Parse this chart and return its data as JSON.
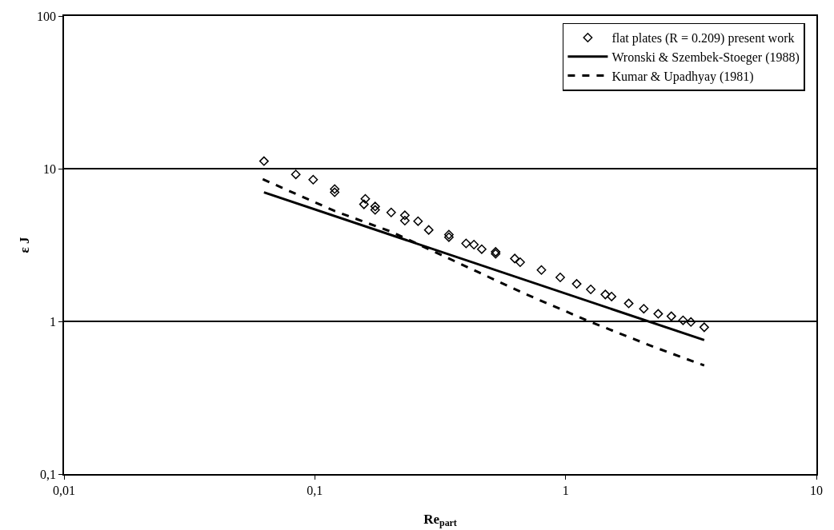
{
  "chart_data": {
    "type": "scatter",
    "xlabel": "Re$_{part}$",
    "ylabel": "ε J",
    "log": "xy",
    "grid": "y",
    "legend": "top right",
    "xlim": [
      0.01,
      10
    ],
    "xticks": [
      {
        "value": 0.01,
        "label": "0,01"
      },
      {
        "value": 0.1,
        "label": "0,1"
      },
      1,
      10
    ],
    "ylim": [
      0.1,
      100
    ],
    "yticks": [
      {
        "value": 0.1,
        "label": "0,1"
      },
      1,
      10,
      100
    ],
    "series": [
      {
        "name": "flat plates (R = 0.209) present work",
        "marker": "diamond",
        "color": "#000000",
        "x": [
          0.0627,
          0.084,
          0.0985,
          0.12,
          0.12,
          0.159,
          0.157,
          0.174,
          0.174,
          0.2016,
          0.2286,
          0.2286,
          0.258,
          0.2846,
          0.3425,
          0.3425,
          0.401,
          0.431,
          0.463,
          0.526,
          0.526,
          0.627,
          0.659,
          0.801,
          0.952,
          1.107,
          1.26,
          1.44,
          1.525,
          1.785,
          2.05,
          2.34,
          2.64,
          2.94,
          3.16,
          3.57
        ],
        "values": [
          11.2,
          9.17,
          8.47,
          7.35,
          7.0,
          6.35,
          5.84,
          5.65,
          5.37,
          5.17,
          4.95,
          4.57,
          4.53,
          3.97,
          3.7,
          3.56,
          3.24,
          3.18,
          2.97,
          2.85,
          2.77,
          2.58,
          2.44,
          2.17,
          1.94,
          1.76,
          1.62,
          1.5,
          1.455,
          1.31,
          1.21,
          1.12,
          1.08,
          1.016,
          0.99,
          0.915
        ]
      },
      {
        "name": "Wronski & Szembek-Stoeger (1988)",
        "type": "line",
        "marker": "none",
        "line_style": "solid",
        "color": "#000000",
        "x": [
          0.0627,
          3.57
        ],
        "values": [
          7.0,
          0.754
        ]
      },
      {
        "name": "Kumar & Upadhyay (1981)",
        "type": "line",
        "marker": "none",
        "line_style": "dashed",
        "color": "#000000",
        "x": [
          0.062,
          0.12,
          0.202,
          0.679,
          1.26,
          2.27,
          3.57
        ],
        "values": [
          8.53,
          5.28,
          3.86,
          1.53,
          0.99,
          0.676,
          0.514
        ]
      }
    ]
  }
}
